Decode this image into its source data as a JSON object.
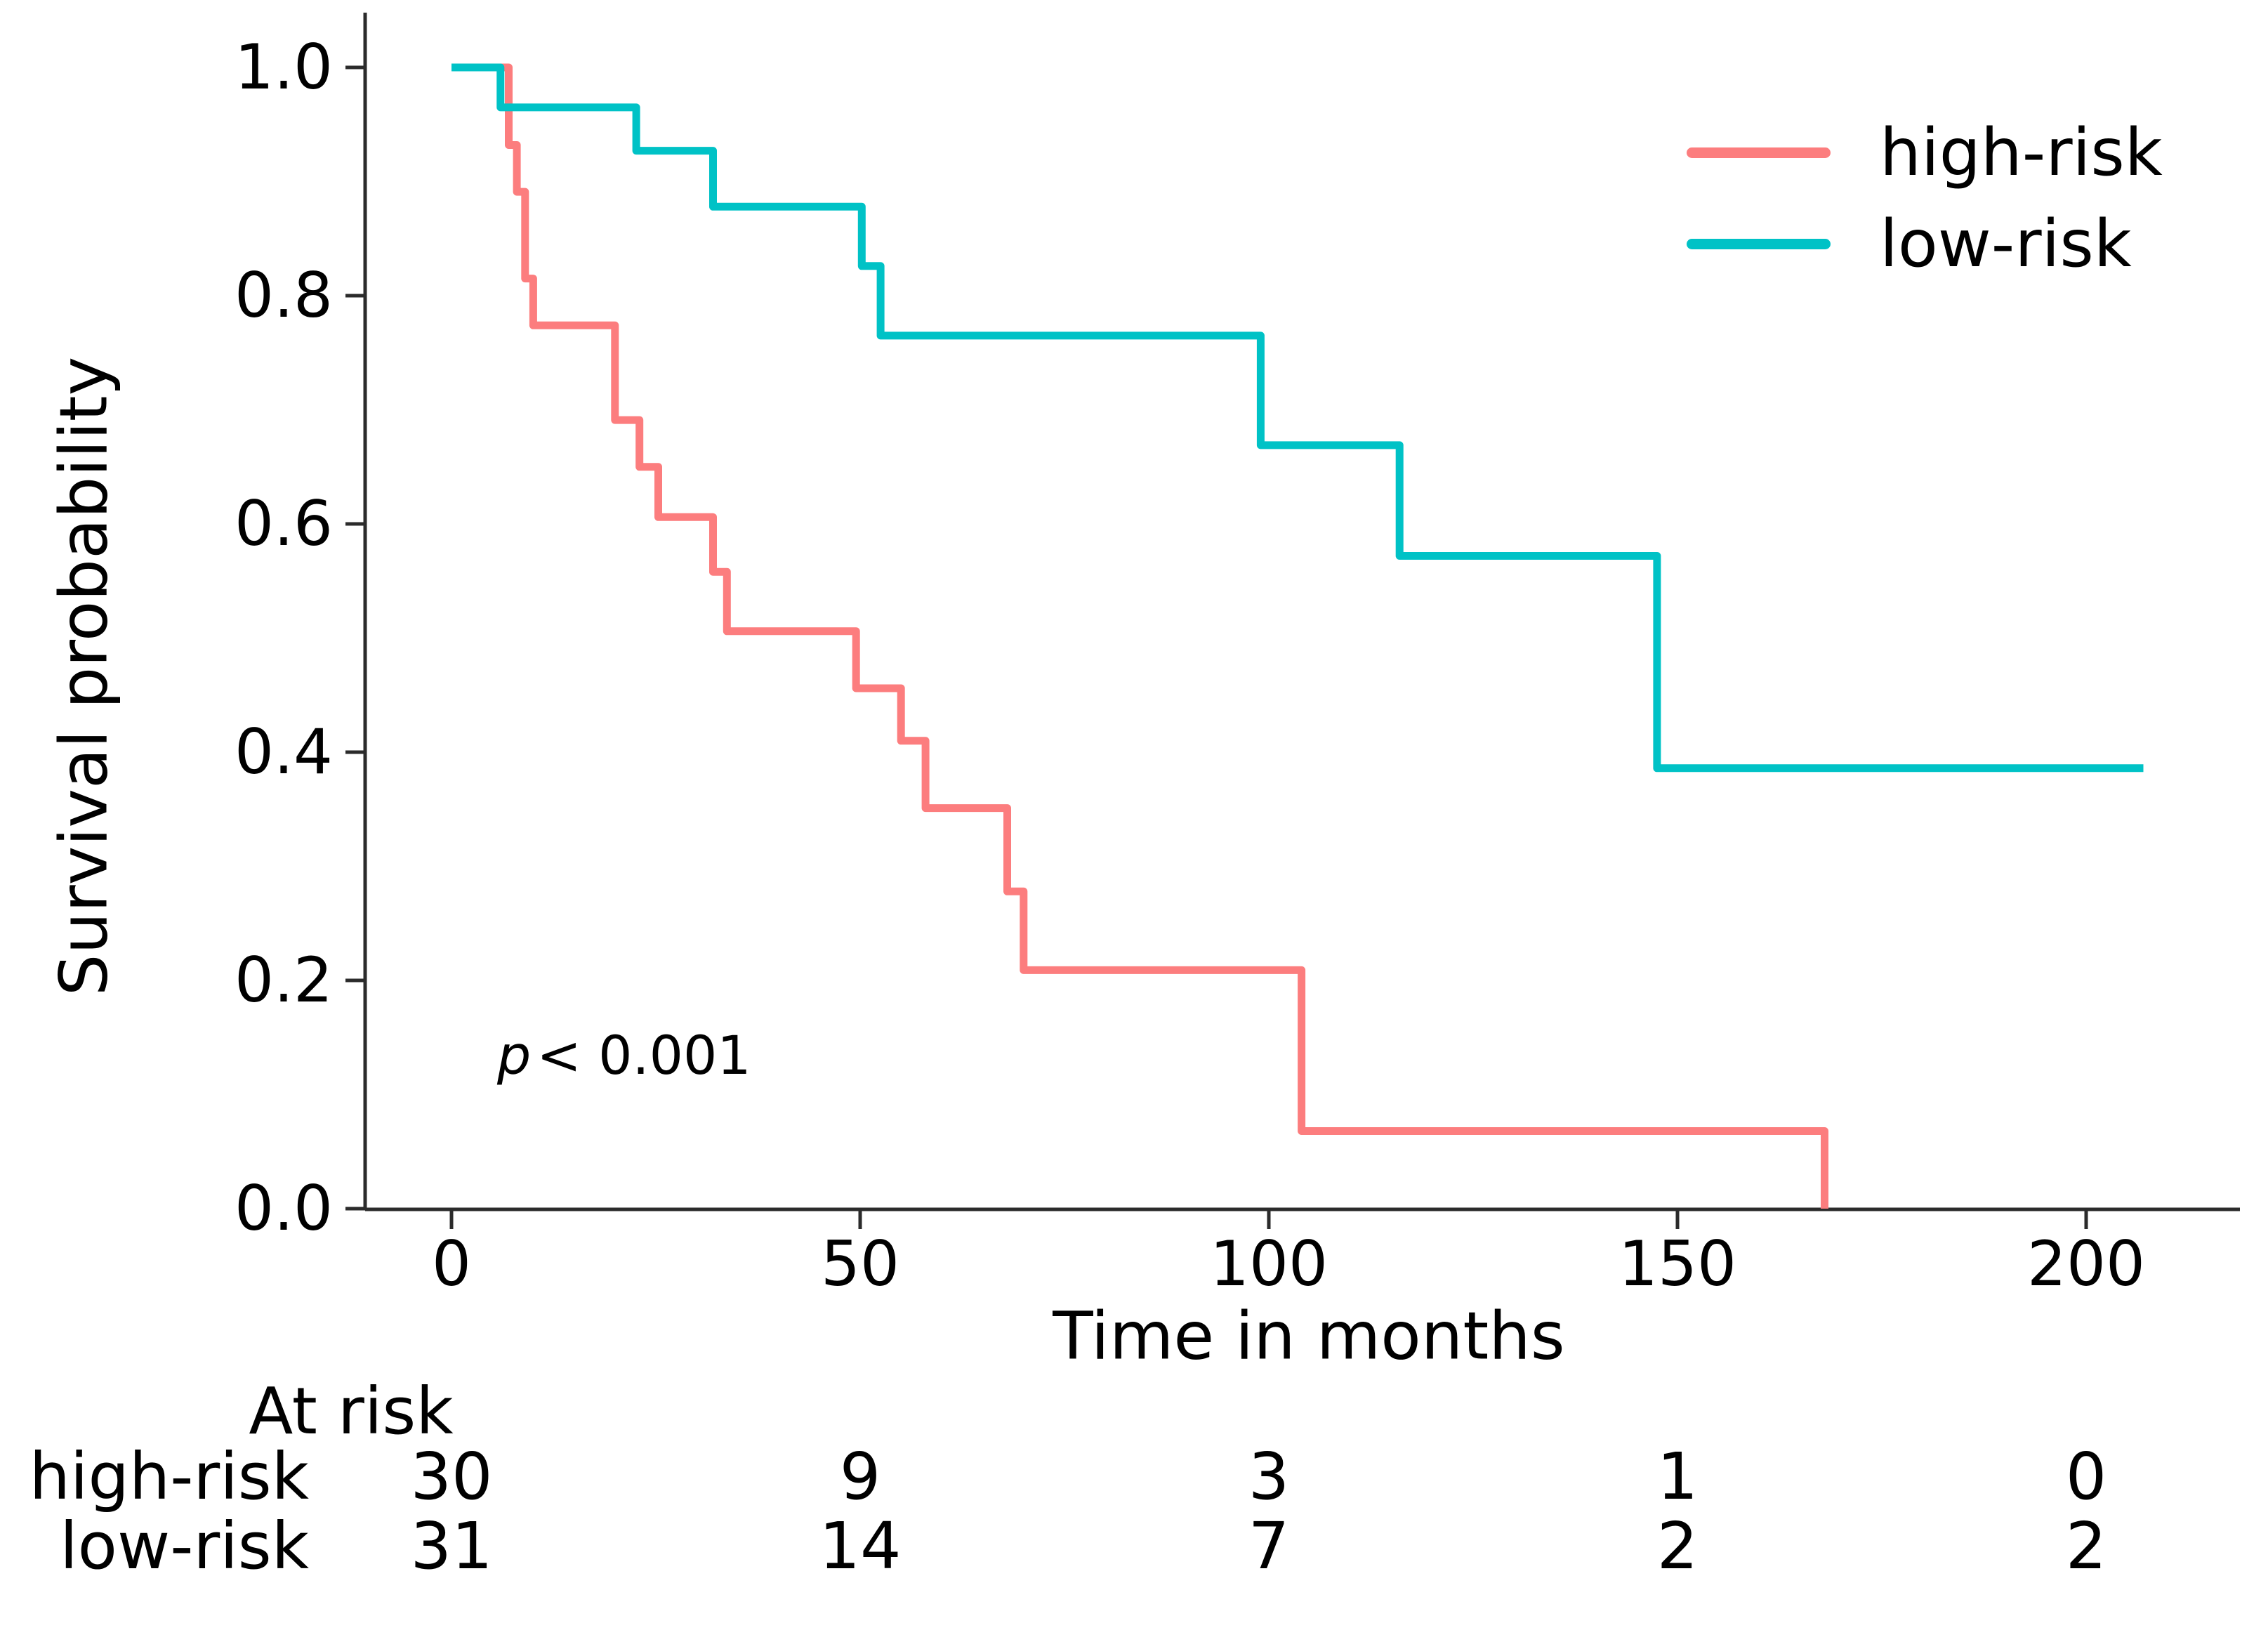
{
  "figure": {
    "colors": {
      "high_risk": "#fc7d7e",
      "low_risk": "#00c2c6",
      "axis": "#2b2b2b",
      "text": "#000000"
    },
    "p_value": {
      "symbol": "p",
      "comparison": "< 0.001"
    }
  },
  "chart_data": {
    "type": "line",
    "subtype": "kaplan-meier-step",
    "title": "",
    "xlabel": "Time in months",
    "ylabel": "Survival probability",
    "x_ticks": [
      "0",
      "50",
      "100",
      "150",
      "200"
    ],
    "y_ticks": [
      "0.0",
      "0.2",
      "0.4",
      "0.6",
      "0.8",
      "1.0"
    ],
    "xlim": [
      -10,
      219
    ],
    "ylim": [
      0,
      1.05
    ],
    "grid": false,
    "legend_position": "upper-right",
    "annotation": "p < 0.001",
    "series": [
      {
        "name": "high-risk",
        "color": "#fc7d7e",
        "points": [
          [
            0,
            1.0
          ],
          [
            7,
            0.932
          ],
          [
            8,
            0.891
          ],
          [
            9,
            0.815
          ],
          [
            10,
            0.774
          ],
          [
            20,
            0.691
          ],
          [
            23,
            0.65
          ],
          [
            25.3,
            0.606
          ],
          [
            32,
            0.558
          ],
          [
            33.7,
            0.506
          ],
          [
            49.5,
            0.456
          ],
          [
            55,
            0.41
          ],
          [
            58,
            0.351
          ],
          [
            68,
            0.278
          ],
          [
            70,
            0.209
          ],
          [
            104,
            0.068
          ],
          [
            168,
            0.0
          ]
        ],
        "end_time": 168
      },
      {
        "name": "low-risk",
        "color": "#00c2c6",
        "points": [
          [
            0,
            1.0
          ],
          [
            6,
            0.965
          ],
          [
            22.6,
            0.927
          ],
          [
            32,
            0.878
          ],
          [
            50.2,
            0.826
          ],
          [
            52.5,
            0.765
          ],
          [
            99,
            0.669
          ],
          [
            116,
            0.572
          ],
          [
            147.5,
            0.386
          ]
        ],
        "end_time": 207
      }
    ],
    "at_risk_table": {
      "header": "At risk",
      "time_points": [
        0,
        50,
        100,
        150,
        200
      ],
      "rows": [
        {
          "label": "high-risk",
          "counts": [
            "30",
            "9",
            "3",
            "1",
            "0"
          ]
        },
        {
          "label": "low-risk",
          "counts": [
            "31",
            "14",
            "7",
            "2",
            "2"
          ]
        }
      ]
    }
  }
}
